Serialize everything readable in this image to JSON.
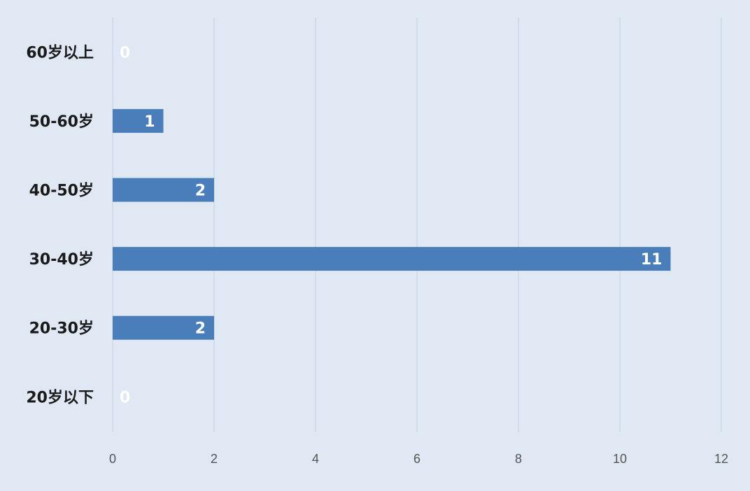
{
  "chart_data": {
    "type": "bar",
    "orientation": "horizontal",
    "categories": [
      "60岁以上",
      "50-60岁",
      "40-50岁",
      "30-40岁",
      "20-30岁",
      "20岁以下"
    ],
    "values": [
      0,
      1,
      2,
      11,
      2,
      0
    ],
    "data_labels": [
      "0",
      "1",
      "2",
      "11",
      "2",
      "0"
    ],
    "xlim": [
      0,
      12
    ],
    "xticks": [
      0,
      2,
      4,
      6,
      8,
      10,
      12
    ],
    "xtick_labels": [
      "0",
      "2",
      "4",
      "6",
      "8",
      "10",
      "12"
    ],
    "title": "",
    "xlabel": "",
    "ylabel": "",
    "grid": "vertical",
    "legend": "none",
    "bar_color": "#4a7ebb",
    "background_color": "#dfe8f3",
    "label_color": "#ffffff"
  }
}
